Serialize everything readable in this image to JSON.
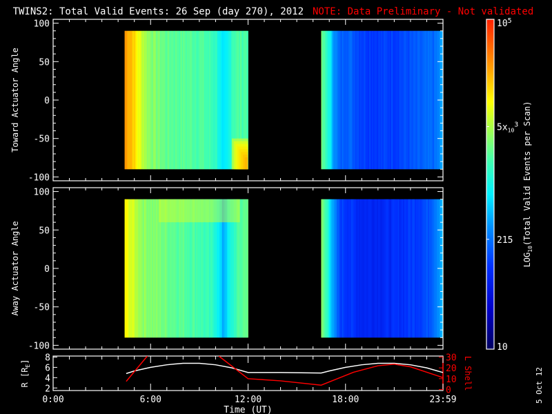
{
  "title": "TWINS2: Total Valid Events: 26 Sep (day 270), 2012",
  "note": "NOTE: Data Preliminary - Not validated",
  "side_date": "5 Oct 12",
  "colors": {
    "background": "#000000",
    "axis": "#ffffff",
    "note": "#ff0000",
    "lshell": "#ff0000",
    "r_line": "#ffffff"
  },
  "chart_data": [
    {
      "type": "heatmap",
      "name": "toward",
      "ylabel": "Toward Actuator Angle",
      "ylim": [
        -105,
        105
      ],
      "yticks": [
        100,
        50,
        0,
        -50,
        -100
      ],
      "xlim": [
        0,
        24
      ],
      "data_angle_range": [
        -90,
        90
      ],
      "data_intervals_hours": [
        [
          4.4,
          12.0
        ],
        [
          16.5,
          24.0
        ]
      ],
      "log_profile": [
        [
          4.4,
          4.45
        ],
        [
          4.8,
          4.3
        ],
        [
          5.2,
          3.95
        ],
        [
          5.8,
          3.6
        ],
        [
          7,
          3.4
        ],
        [
          9,
          3.35
        ],
        [
          10,
          3.2
        ],
        [
          10.4,
          2.75
        ],
        [
          10.7,
          2.9
        ],
        [
          11,
          3.3
        ],
        [
          12,
          3.35
        ],
        [
          16.5,
          3.4
        ],
        [
          16.9,
          3.1
        ],
        [
          17.2,
          2.6
        ],
        [
          17.6,
          2.2
        ],
        [
          18,
          2.3
        ],
        [
          19,
          2.1
        ],
        [
          20,
          2.05
        ],
        [
          22,
          2.15
        ],
        [
          23.5,
          2.3
        ],
        [
          24,
          2.6
        ]
      ],
      "hot_corner": {
        "hours": [
          11.0,
          12.0
        ],
        "angles": [
          -90,
          -50
        ],
        "log": 4.4
      }
    },
    {
      "type": "heatmap",
      "name": "away",
      "ylabel": "Away Actuator Angle",
      "ylim": [
        -105,
        105
      ],
      "yticks": [
        100,
        50,
        0,
        -50,
        -100
      ],
      "xlim": [
        0,
        24
      ],
      "data_angle_range": [
        -90,
        90
      ],
      "data_intervals_hours": [
        [
          4.4,
          12.0
        ],
        [
          16.5,
          24.0
        ]
      ],
      "log_profile": [
        [
          4.4,
          4.0
        ],
        [
          4.8,
          3.85
        ],
        [
          5.5,
          3.6
        ],
        [
          7,
          3.45
        ],
        [
          9,
          3.3
        ],
        [
          10,
          3.1
        ],
        [
          10.4,
          2.6
        ],
        [
          10.7,
          2.85
        ],
        [
          11.2,
          3.25
        ],
        [
          12,
          3.5
        ],
        [
          16.5,
          3.5
        ],
        [
          16.9,
          3.1
        ],
        [
          17.2,
          2.5
        ],
        [
          17.6,
          2.1
        ],
        [
          18,
          2.05
        ],
        [
          19,
          1.9
        ],
        [
          21,
          1.95
        ],
        [
          23,
          2.15
        ],
        [
          24,
          2.7
        ]
      ],
      "hot_band": {
        "hours": [
          6.5,
          11.5
        ],
        "angles": [
          60,
          90
        ],
        "log": 3.9
      }
    },
    {
      "type": "line",
      "name": "orbit",
      "xlabel": "Time (UT)",
      "xticklabels": [
        "0:00",
        "6:00",
        "12:00",
        "18:00",
        "23:59"
      ],
      "xtick_hours": [
        0,
        6,
        12,
        18,
        24
      ],
      "ylabel_left": "R [R",
      "ylabel_left_sub": "E",
      "ylabel_left_end": "]",
      "ylim_left": [
        1.5,
        8.2
      ],
      "yticks_left": [
        2,
        4,
        6,
        8
      ],
      "ylabel_right": "L Shell",
      "ylim_right": [
        -1,
        31
      ],
      "yticks_right": [
        0,
        10,
        20,
        30
      ],
      "series": [
        {
          "name": "R",
          "axis": "left",
          "points": [
            [
              4.5,
              4.8
            ],
            [
              5,
              5.3
            ],
            [
              6,
              6.0
            ],
            [
              7,
              6.5
            ],
            [
              8,
              6.8
            ],
            [
              9,
              6.8
            ],
            [
              10,
              6.5
            ],
            [
              11,
              5.9
            ],
            [
              12,
              5.0
            ],
            [
              14,
              5.0
            ],
            [
              16.5,
              4.9
            ],
            [
              17,
              5.3
            ],
            [
              18,
              6.0
            ],
            [
              19,
              6.5
            ],
            [
              20,
              6.8
            ],
            [
              21,
              6.8
            ],
            [
              22,
              6.5
            ],
            [
              23,
              5.9
            ],
            [
              24,
              5.0
            ]
          ]
        },
        {
          "name": "L Shell",
          "axis": "right",
          "segments": [
            [
              [
                4.5,
                7.5
              ],
              [
                5.8,
                31
              ]
            ],
            [
              [
                10.2,
                31
              ],
              [
                12,
                10
              ],
              [
                14,
                8
              ],
              [
                16.5,
                4
              ],
              [
                17.5,
                10
              ],
              [
                18.5,
                16
              ],
              [
                20,
                22
              ],
              [
                21,
                23.5
              ],
              [
                22,
                21
              ],
              [
                23,
                16
              ],
              [
                24,
                11
              ]
            ]
          ]
        }
      ]
    },
    {
      "type": "colorbar",
      "label_prefix": "LOG",
      "label_sub": "10",
      "label_suffix": "(Total Valid Events per Scan)",
      "ticks": [
        {
          "log": 5,
          "label": "10",
          "sup": "5"
        },
        {
          "log": 3.699,
          "label": "5x",
          "sub": "10",
          "sup": "3"
        },
        {
          "log": 2.332,
          "label": "215"
        },
        {
          "log": 1,
          "label": "10"
        }
      ],
      "range_log": [
        1,
        5
      ]
    }
  ]
}
